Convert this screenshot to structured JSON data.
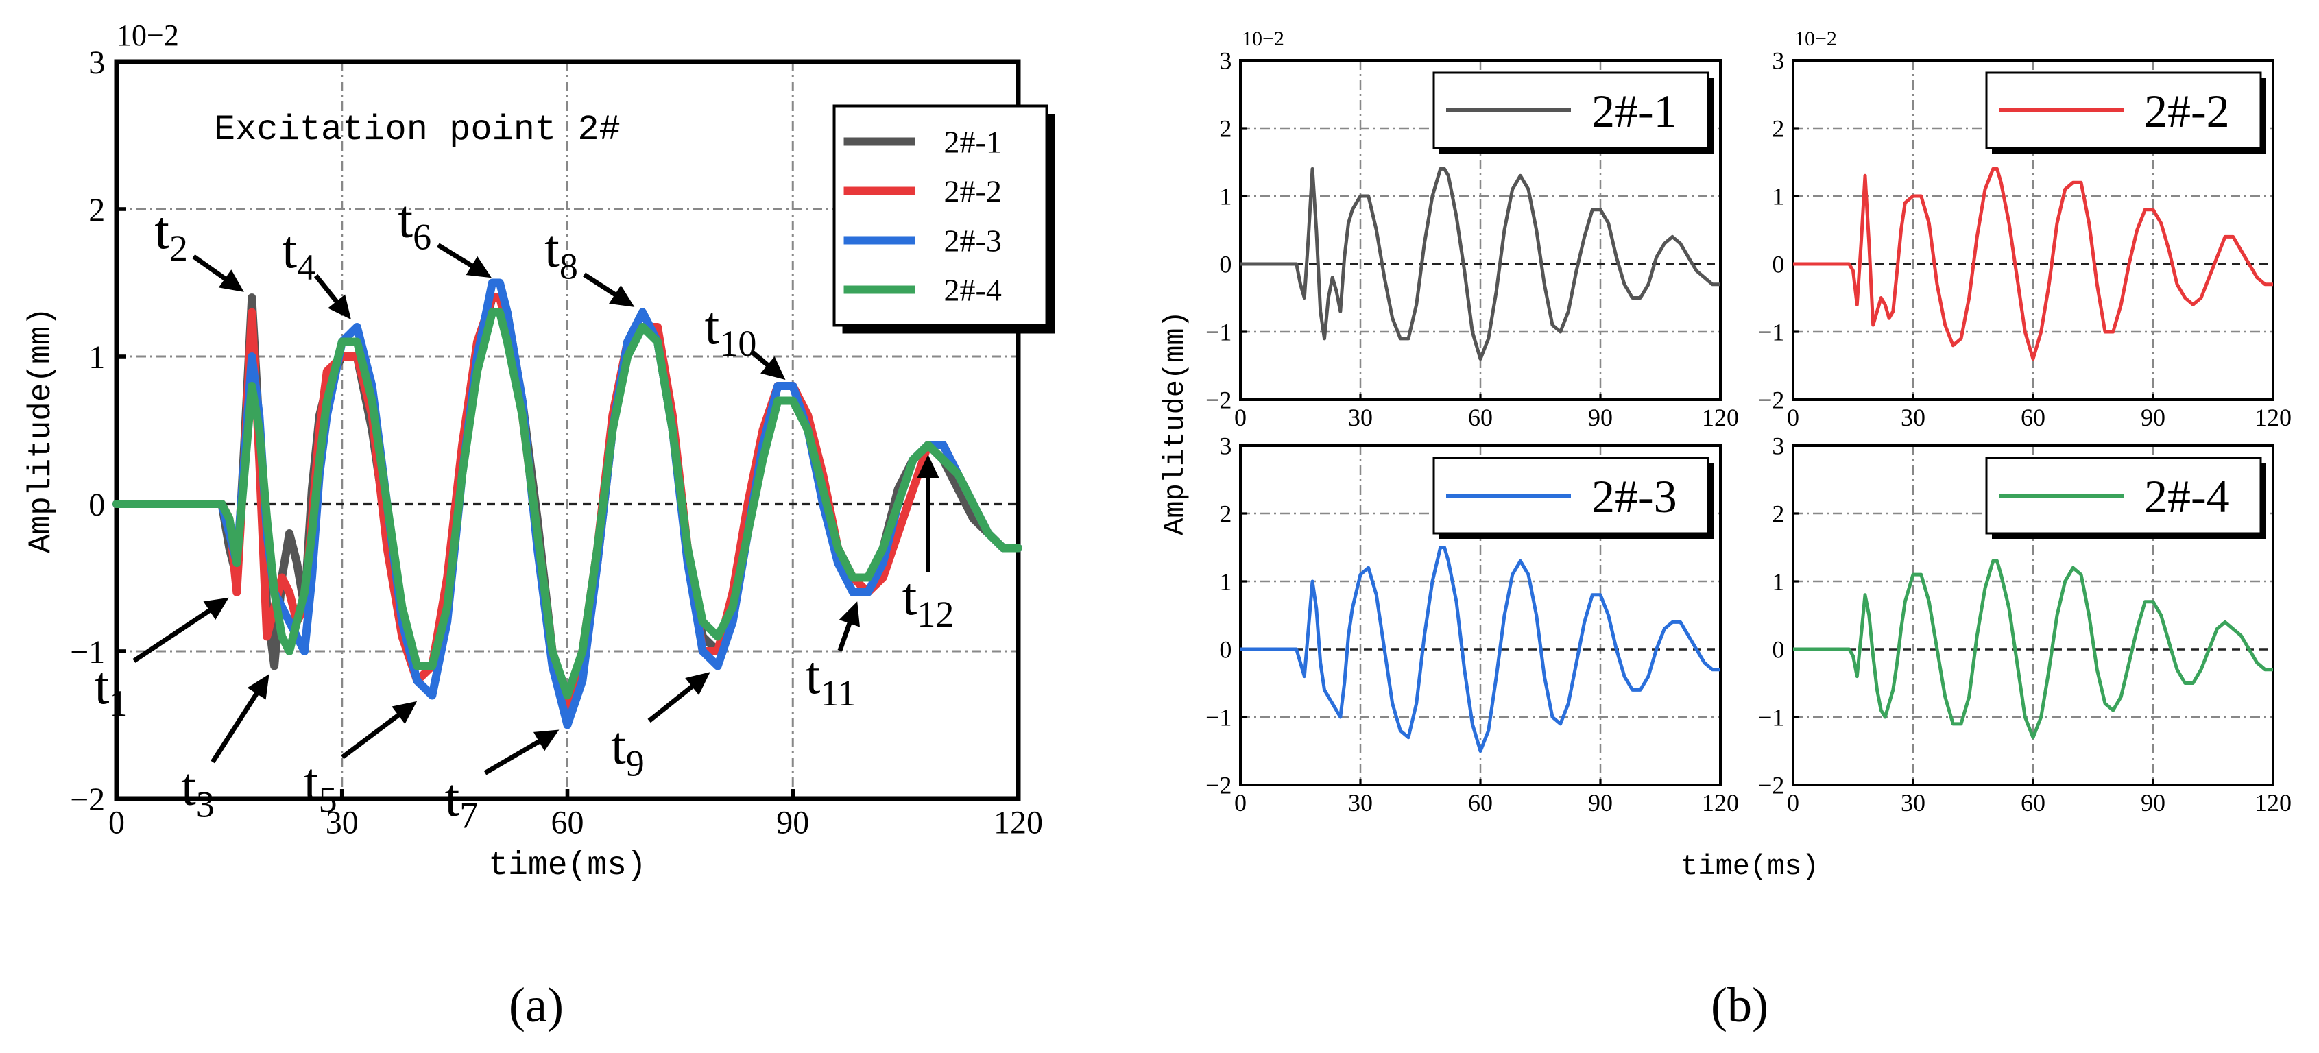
{
  "chart_data": [
    {
      "panel": "(a)",
      "type": "line",
      "title": "Excitation point 2#",
      "xlabel": "time(ms)",
      "ylabel": "Amplitude(mm)",
      "yexponent": "10−2",
      "xlim": [
        0,
        120
      ],
      "ylim": [
        -2,
        3
      ],
      "xticks": [
        "0",
        "30",
        "60",
        "90",
        "120"
      ],
      "yticks": [
        "−2",
        "−1",
        "0",
        "1",
        "2",
        "3"
      ],
      "grid": true,
      "legend": "top-right",
      "series": [
        {
          "name": "2#-1",
          "color": "#555555",
          "x": [
            0,
            14,
            15,
            16,
            17,
            18,
            19,
            20,
            21,
            22,
            23,
            24,
            25,
            26,
            27,
            28,
            30,
            32,
            34,
            36,
            38,
            40,
            42,
            44,
            46,
            48,
            50,
            51,
            52,
            54,
            56,
            58,
            60,
            62,
            64,
            66,
            68,
            70,
            72,
            74,
            76,
            78,
            80,
            82,
            84,
            86,
            88,
            90,
            92,
            94,
            96,
            98,
            100,
            102,
            104,
            106,
            108,
            110,
            112,
            114,
            116,
            118,
            120
          ],
          "y": [
            0,
            0,
            -0.3,
            -0.5,
            0.4,
            1.4,
            0.5,
            -0.7,
            -1.1,
            -0.5,
            -0.2,
            -0.4,
            -0.7,
            0.1,
            0.6,
            0.8,
            1.0,
            1.0,
            0.5,
            -0.2,
            -0.8,
            -1.1,
            -1.1,
            -0.6,
            0.3,
            1.0,
            1.4,
            1.4,
            1.3,
            0.7,
            -0.1,
            -1.0,
            -1.4,
            -1.1,
            -0.4,
            0.5,
            1.1,
            1.3,
            1.1,
            0.5,
            -0.3,
            -0.9,
            -1.0,
            -0.7,
            -0.1,
            0.4,
            0.8,
            0.8,
            0.6,
            0.1,
            -0.3,
            -0.5,
            -0.5,
            -0.3,
            0.1,
            0.3,
            0.4,
            0.3,
            0.1,
            -0.1,
            -0.2,
            -0.3,
            -0.3
          ]
        },
        {
          "name": "2#-2",
          "color": "#e8383a",
          "x": [
            0,
            14,
            15,
            16,
            17,
            18,
            19,
            20,
            21,
            22,
            23,
            24,
            25,
            26,
            27,
            28,
            30,
            32,
            34,
            36,
            38,
            40,
            42,
            44,
            46,
            48,
            50,
            51,
            52,
            54,
            56,
            58,
            60,
            62,
            64,
            66,
            68,
            70,
            72,
            74,
            76,
            78,
            80,
            82,
            84,
            86,
            88,
            90,
            92,
            94,
            96,
            98,
            100,
            102,
            104,
            106,
            108,
            110,
            112,
            114,
            116,
            118,
            120
          ],
          "y": [
            0,
            0,
            -0.1,
            -0.6,
            0.3,
            1.3,
            0.3,
            -0.9,
            -0.7,
            -0.5,
            -0.6,
            -0.8,
            -0.7,
            -0.1,
            0.5,
            0.9,
            1.0,
            1.0,
            0.6,
            -0.3,
            -0.9,
            -1.2,
            -1.1,
            -0.5,
            0.4,
            1.1,
            1.4,
            1.4,
            1.2,
            0.6,
            -0.2,
            -1.0,
            -1.4,
            -1.0,
            -0.3,
            0.6,
            1.1,
            1.2,
            1.2,
            0.6,
            -0.3,
            -1.0,
            -1.0,
            -0.6,
            0.0,
            0.5,
            0.8,
            0.8,
            0.6,
            0.2,
            -0.3,
            -0.5,
            -0.6,
            -0.5,
            -0.2,
            0.1,
            0.4,
            0.4,
            0.2,
            0.0,
            -0.2,
            -0.3,
            -0.3
          ]
        },
        {
          "name": "2#-3",
          "color": "#2a6fdb",
          "x": [
            0,
            14,
            15,
            16,
            17,
            18,
            19,
            20,
            21,
            22,
            23,
            24,
            25,
            26,
            27,
            28,
            30,
            32,
            34,
            36,
            38,
            40,
            42,
            44,
            46,
            48,
            50,
            51,
            52,
            54,
            56,
            58,
            60,
            62,
            64,
            66,
            68,
            70,
            72,
            74,
            76,
            78,
            80,
            82,
            84,
            86,
            88,
            90,
            92,
            94,
            96,
            98,
            100,
            102,
            104,
            106,
            108,
            110,
            112,
            114,
            116,
            118,
            120
          ],
          "y": [
            0,
            0,
            -0.2,
            -0.4,
            0.3,
            1.0,
            0.6,
            -0.2,
            -0.6,
            -0.7,
            -0.8,
            -0.9,
            -1.0,
            -0.5,
            0.2,
            0.6,
            1.1,
            1.2,
            0.8,
            0.0,
            -0.8,
            -1.2,
            -1.3,
            -0.8,
            0.2,
            1.0,
            1.5,
            1.5,
            1.3,
            0.7,
            -0.3,
            -1.1,
            -1.5,
            -1.2,
            -0.4,
            0.5,
            1.1,
            1.3,
            1.1,
            0.5,
            -0.4,
            -1.0,
            -1.1,
            -0.8,
            -0.2,
            0.4,
            0.8,
            0.8,
            0.5,
            0.0,
            -0.4,
            -0.6,
            -0.6,
            -0.4,
            0.0,
            0.3,
            0.4,
            0.4,
            0.2,
            0.0,
            -0.2,
            -0.3,
            -0.3
          ]
        },
        {
          "name": "2#-4",
          "color": "#3aa35b",
          "x": [
            0,
            14,
            15,
            16,
            17,
            18,
            19,
            20,
            21,
            22,
            23,
            24,
            25,
            26,
            27,
            28,
            30,
            32,
            34,
            36,
            38,
            40,
            42,
            44,
            46,
            48,
            50,
            51,
            52,
            54,
            56,
            58,
            60,
            62,
            64,
            66,
            68,
            70,
            72,
            74,
            76,
            78,
            80,
            82,
            84,
            86,
            88,
            90,
            92,
            94,
            96,
            98,
            100,
            102,
            104,
            106,
            108,
            110,
            112,
            114,
            116,
            118,
            120
          ],
          "y": [
            0,
            0,
            -0.1,
            -0.4,
            0.2,
            0.8,
            0.5,
            -0.1,
            -0.6,
            -0.9,
            -1.0,
            -0.8,
            -0.6,
            -0.2,
            0.3,
            0.7,
            1.1,
            1.1,
            0.7,
            0.0,
            -0.7,
            -1.1,
            -1.1,
            -0.7,
            0.2,
            0.9,
            1.3,
            1.3,
            1.1,
            0.6,
            -0.2,
            -1.0,
            -1.3,
            -1.0,
            -0.3,
            0.5,
            1.0,
            1.2,
            1.1,
            0.5,
            -0.3,
            -0.8,
            -0.9,
            -0.7,
            -0.2,
            0.3,
            0.7,
            0.7,
            0.5,
            0.1,
            -0.3,
            -0.5,
            -0.5,
            -0.3,
            0.0,
            0.3,
            0.4,
            0.3,
            0.2,
            0.0,
            -0.2,
            -0.3,
            -0.3
          ]
        }
      ],
      "annotations": [
        {
          "label": "t",
          "sub": "1",
          "x": 16,
          "y": -0.6
        },
        {
          "label": "t",
          "sub": "2",
          "x": 18,
          "y": 1.4
        },
        {
          "label": "t",
          "sub": "3",
          "x": 21,
          "y": -1.1
        },
        {
          "label": "t",
          "sub": "4",
          "x": 32,
          "y": 1.2
        },
        {
          "label": "t",
          "sub": "5",
          "x": 41,
          "y": -1.3
        },
        {
          "label": "t",
          "sub": "6",
          "x": 51,
          "y": 1.5
        },
        {
          "label": "t",
          "sub": "7",
          "x": 60,
          "y": -1.5
        },
        {
          "label": "t",
          "sub": "8",
          "x": 70,
          "y": 1.3
        },
        {
          "label": "t",
          "sub": "9",
          "x": 80,
          "y": -1.1
        },
        {
          "label": "t",
          "sub": "10",
          "x": 90,
          "y": 0.8
        },
        {
          "label": "t",
          "sub": "11",
          "x": 99,
          "y": -0.6
        },
        {
          "label": "t",
          "sub": "12",
          "x": 108,
          "y": 0.4
        }
      ]
    },
    {
      "panel": "(b)",
      "type": "line",
      "xlabel": "time(ms)",
      "ylabel": "Amplitude(mm)",
      "yexponent": "10−2",
      "xlim": [
        0,
        120
      ],
      "ylim": [
        -2,
        3
      ],
      "xticks": [
        "0",
        "30",
        "60",
        "90",
        "120"
      ],
      "yticks": [
        "−2",
        "−1",
        "0",
        "1",
        "2",
        "3"
      ],
      "grid": true,
      "legend": "top-right",
      "subplots": [
        "2#-1",
        "2#-2",
        "2#-3",
        "2#-4"
      ]
    }
  ],
  "captions": {
    "a": "(a)",
    "b": "(b)"
  }
}
